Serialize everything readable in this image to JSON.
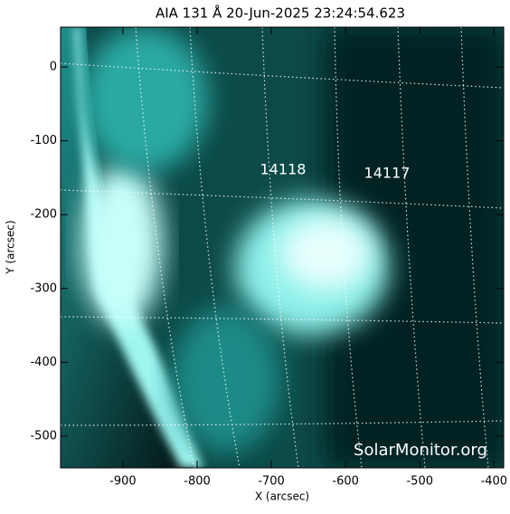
{
  "chart_data": {
    "type": "image",
    "title": "AIA 131 Å 20-Jun-2025 23:24:54.623",
    "x_label": "X (arcsec)",
    "y_label": "Y (arcsec)",
    "xlim": [
      -984,
      -387
    ],
    "ylim": [
      -543,
      54
    ],
    "xticks": [
      -900,
      -800,
      -700,
      -600,
      -500,
      -400
    ],
    "yticks": [
      0,
      -100,
      -200,
      -300,
      -400,
      -500
    ],
    "annotations": [
      "14118",
      "14117"
    ],
    "watermark": "SolarMonitor.org"
  }
}
